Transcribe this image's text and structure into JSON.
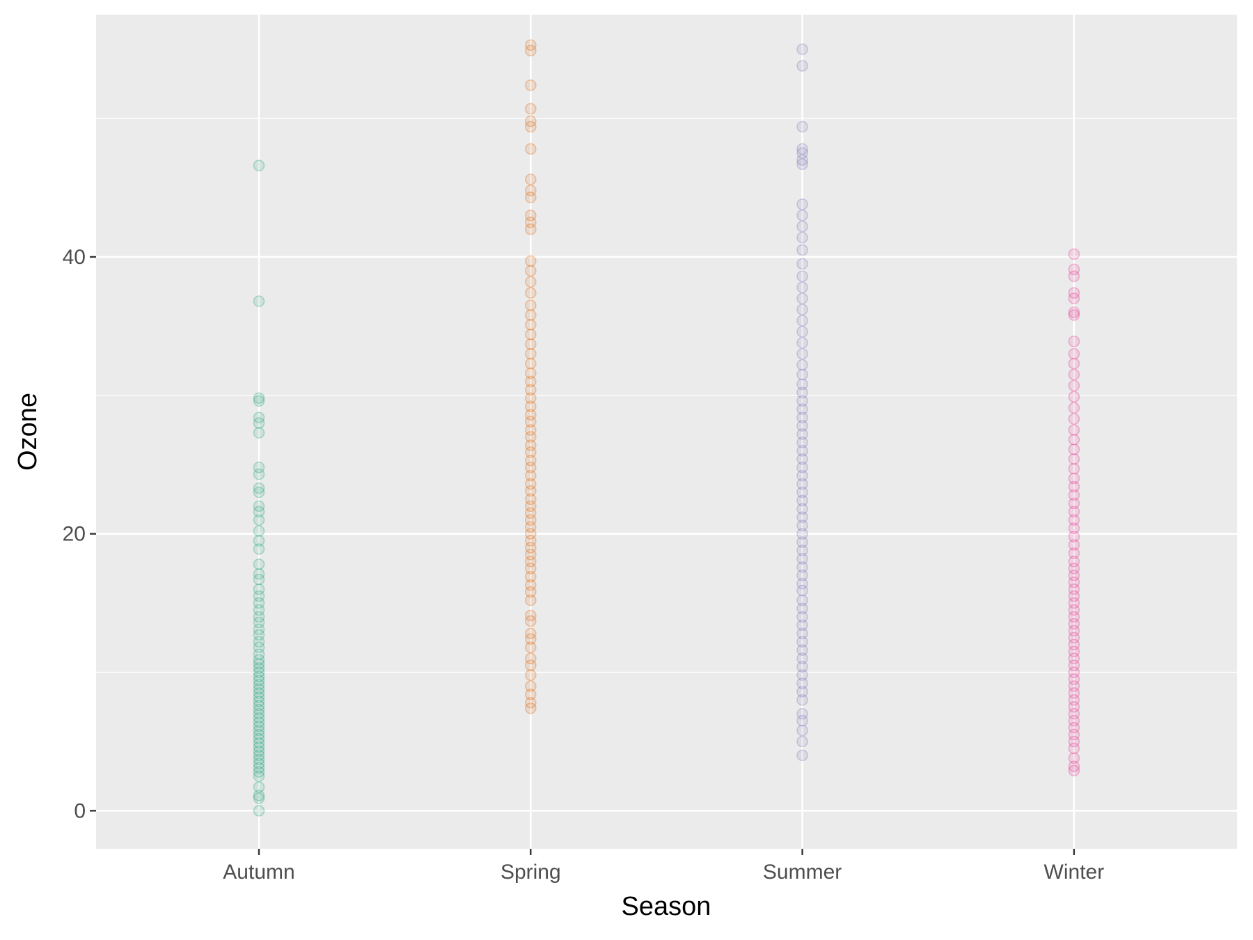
{
  "chart_data": {
    "type": "scatter",
    "title": "",
    "xlabel": "Season",
    "ylabel": "Ozone",
    "categories": [
      "Autumn",
      "Spring",
      "Summer",
      "Winter"
    ],
    "ylim": [
      -2.75,
      57.5
    ],
    "yticks": [
      0,
      20,
      40
    ],
    "ytick_labels": [
      "0",
      "20",
      "40"
    ],
    "y_minor_gridlines": [
      10,
      30,
      50
    ],
    "grid": true,
    "legend": "none",
    "colors": [
      "#1B9E77",
      "#D95F02",
      "#7570B3",
      "#E7298A"
    ],
    "series": [
      {
        "name": "Autumn",
        "values": [
          0,
          0.9,
          1.1,
          1.7,
          2.5,
          2.8,
          3.1,
          3.4,
          3.7,
          4.0,
          4.3,
          4.6,
          4.9,
          5.2,
          5.5,
          5.8,
          6.1,
          6.4,
          6.7,
          7.0,
          7.3,
          7.6,
          7.9,
          8.2,
          8.5,
          8.8,
          9.1,
          9.4,
          9.7,
          10.0,
          10.3,
          10.6,
          10.9,
          11.3,
          11.8,
          12.2,
          12.7,
          13.1,
          13.6,
          14.0,
          14.5,
          15.0,
          15.5,
          16.0,
          16.7,
          17.1,
          17.8,
          18.9,
          19.5,
          20.2,
          21.0,
          21.6,
          22.0,
          23.0,
          23.3,
          24.3,
          24.8,
          27.3,
          28.0,
          28.4,
          29.6,
          29.8,
          36.8,
          46.6
        ]
      },
      {
        "name": "Spring",
        "values": [
          7.4,
          7.8,
          8.4,
          9.0,
          9.8,
          10.5,
          11.0,
          11.8,
          12.4,
          12.8,
          13.7,
          14.1,
          15.2,
          15.8,
          16.3,
          16.9,
          17.5,
          18.0,
          18.5,
          19.0,
          19.5,
          20.0,
          20.5,
          21.0,
          21.5,
          22.0,
          22.5,
          23.1,
          23.6,
          24.2,
          24.8,
          25.3,
          25.9,
          26.4,
          27.0,
          27.5,
          28.1,
          28.6,
          29.2,
          29.8,
          30.4,
          31.0,
          31.6,
          32.3,
          33.0,
          33.7,
          34.4,
          35.1,
          35.8,
          36.5,
          37.4,
          38.2,
          39.0,
          39.7,
          42.0,
          42.5,
          43.0,
          44.3,
          44.8,
          45.6,
          47.8,
          49.4,
          49.8,
          50.7,
          52.4,
          54.9,
          55.3
        ]
      },
      {
        "name": "Summer",
        "values": [
          4.0,
          5.0,
          5.8,
          6.5,
          7.0,
          8.0,
          8.6,
          9.2,
          9.8,
          10.4,
          11.0,
          11.6,
          12.2,
          12.8,
          13.4,
          14.0,
          14.6,
          15.2,
          15.9,
          16.4,
          17.0,
          17.6,
          18.2,
          18.8,
          19.4,
          20.0,
          20.6,
          21.2,
          21.8,
          22.4,
          23.0,
          23.6,
          24.2,
          24.8,
          25.4,
          26.0,
          26.6,
          27.2,
          27.8,
          28.4,
          29.0,
          29.6,
          30.2,
          30.8,
          31.5,
          32.2,
          33.0,
          33.8,
          34.6,
          35.4,
          36.2,
          37.0,
          37.8,
          38.6,
          39.5,
          40.5,
          41.4,
          42.2,
          43.0,
          43.8,
          46.7,
          47.0,
          47.5,
          47.8,
          49.4,
          53.8,
          55.0
        ]
      },
      {
        "name": "Winter",
        "values": [
          2.9,
          3.2,
          3.8,
          4.5,
          5.0,
          5.5,
          6.0,
          6.5,
          7.0,
          7.5,
          8.0,
          8.5,
          9.0,
          9.5,
          10.0,
          10.5,
          11.0,
          11.5,
          12.0,
          12.5,
          13.0,
          13.5,
          14.0,
          14.5,
          15.0,
          15.5,
          16.0,
          16.5,
          17.0,
          17.5,
          18.0,
          18.6,
          19.2,
          19.8,
          20.4,
          21.0,
          21.6,
          22.2,
          22.8,
          23.4,
          24.0,
          24.7,
          25.4,
          26.1,
          26.8,
          27.5,
          28.3,
          29.1,
          29.9,
          30.7,
          31.5,
          32.3,
          33.0,
          33.9,
          35.8,
          36.0,
          37.0,
          37.4,
          38.6,
          39.1,
          40.2
        ]
      }
    ]
  }
}
